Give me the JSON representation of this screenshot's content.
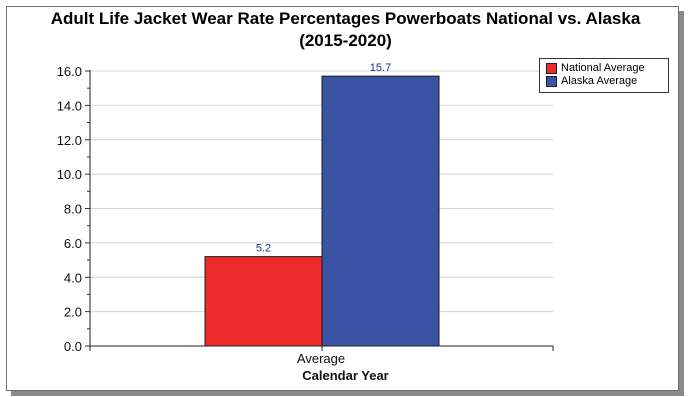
{
  "chart_data": {
    "type": "bar",
    "title": "Adult Life Jacket Wear Rate Percentages Powerboats National vs. Alaska",
    "subtitle": "(2015-2020)",
    "xlabel": "Calendar Year",
    "ylabel": "",
    "categories": [
      "Average"
    ],
    "series": [
      {
        "name": "National Average",
        "values": [
          5.2
        ],
        "color": "#ee2b2b"
      },
      {
        "name": "Alaska Average",
        "values": [
          15.7
        ],
        "color": "#3a52a4"
      }
    ],
    "ylim": [
      0,
      16
    ],
    "yticks": [
      "0.0",
      "2.0",
      "4.0",
      "6.0",
      "8.0",
      "10.0",
      "12.0",
      "14.0",
      "16.0"
    ],
    "data_labels": [
      "5.2",
      "15.7"
    ],
    "data_label_color": "#1f2b8a",
    "grid": true,
    "legend_position": "top-right"
  }
}
